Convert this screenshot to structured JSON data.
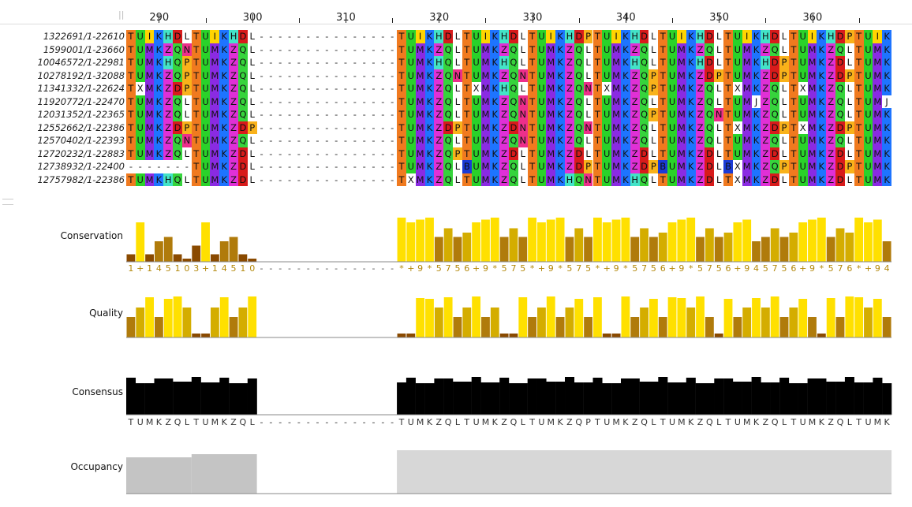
{
  "ruler": {
    "start": 287,
    "labels": [
      "290",
      "300",
      "310",
      "320",
      "330",
      "340",
      "350",
      "360"
    ]
  },
  "sequences": [
    {
      "name": "1322691/1-22610",
      "seq": "TUIKHDLTUIKHDL---------------TUIKHDLTUIKHDLTUIKHDPTUIKHDLTUIKHDLTUIKHDLTUIKHDPTUIK"
    },
    {
      "name": "1599001/1-23660",
      "seq": "TUMKZQNTUMKZQL---------------TUMKZQLTUMKZQLTUMKZQLTUMKZQLTUMKZQLTUMKZQLTUMKZQLTUMK"
    },
    {
      "name": "10046572/1-22981",
      "seq": "TUMKHQPTUMKZQL---------------TUMKHQLTUMKHQLTUMKZQLTUMKHQLTUMKHDLTUMKHDPTUMKZDLTUMK"
    },
    {
      "name": "10278192/1-32088",
      "seq": "TUMKZQPTUMKZQL---------------TUMKZQNTUMKZQNTUMKZQLTUMKZQPTUMKZDPTUMKZDPTUMKZDPTUMK"
    },
    {
      "name": "11341332/1-22624",
      "seq": "TXMKZDPTUMKZQL---------------TUMKZQLTXMKHQLTUMKZQNTXMKZQPTUMKZQLTXMKZQLTXMKZQLTUMK"
    },
    {
      "name": "11920772/1-22470",
      "seq": "TUMKZQLTUMKZQL---------------TUMKZQLTUMKZQNTUMKZQLTUMKZQLTUMKZQLTUMJZQLTUMKZQLTUMJ"
    },
    {
      "name": "12031352/1-22365",
      "seq": "TUMKZQLTUMKZQL---------------TUMKZQLTUMKZQNTUMKZQLTUMKZQPTUMKZQNTUMKZQLTUMKZQLTUMK"
    },
    {
      "name": "12552662/1-22386",
      "seq": "TUMKZDPTUMKZDP---------------TUMKZDPTUMKZDNTUMKZQNTUMKZQLTUMKZQLTXMKZDPTXMKZDPTUMK"
    },
    {
      "name": "12570402/1-22393",
      "seq": "TUMKZQNTUMKZQL---------------TUMKZQLTUMKZQNTUMKZQLTUMKZQLTUMKZQLTUMKZQLTUMKZQLTUMK"
    },
    {
      "name": "12720232/1-22883",
      "seq": "TUMKZQLTUMKZDL---------------TUMKZQPTUMKZDLTUMKZDLTUMKZDLTUMKZDLTUMKZDLTUMKZDLTUMK"
    },
    {
      "name": "12738932/1-22400",
      "seq": "-------TUMKZDL---------------TUMKZQLBUMKZQLTUMKZDPTUMKZDPBUMKZDLBXMKZQPTUMKZDPTUMK"
    },
    {
      "name": "12757982/1-22386",
      "seq": "TUMKHQLTUMKZDL---------------TXMKZQLTUMKZQLTUMKHQNTUMKHQLTUMKZDLTXMKZDLTUMKZDLTUMK"
    }
  ],
  "residue_colors": {
    "T": "#f07a1f",
    "U": "#2ad22a",
    "I": "#ffd400",
    "M": "#8a2be2",
    "K": "#1e74ff",
    "H": "#43e3c7",
    "D": "#d81b1b",
    "Q": "#36d43c",
    "Z": "#e030d6",
    "L": "#ffffff",
    "P": "#f9b21a",
    "N": "#ed2f8b",
    "X": "#ffffff",
    "J": "#ffffff",
    "B": "#1b3bd6",
    "-": "#ffffff"
  },
  "tracks": {
    "conservation": {
      "label": "Conservation",
      "values": [
        "1",
        "+",
        "1",
        "4",
        "5",
        "1",
        "0",
        "3",
        "+",
        "1",
        "4",
        "5",
        "1",
        "0",
        "-",
        "-",
        "-",
        "-",
        "-",
        "-",
        "-",
        "-",
        "-",
        "-",
        "-",
        "-",
        "-",
        "-",
        "-",
        "*",
        "+",
        "9",
        "*",
        "5",
        "7",
        "5",
        "6",
        "+",
        "9",
        "*",
        "5",
        "7",
        "5",
        "*",
        "+",
        "9",
        "*",
        "5",
        "7",
        "5",
        "*",
        "+",
        "9",
        "*",
        "5",
        "7",
        "5",
        "6",
        "+",
        "9",
        "*",
        "5",
        "7",
        "5",
        "6",
        "+",
        "9",
        "4",
        "5",
        "7",
        "5",
        "6",
        "+",
        "9",
        "*",
        "5",
        "7",
        "6",
        "*",
        "+",
        "9",
        "4"
      ]
    },
    "quality": {
      "label": "Quality"
    },
    "consensus": {
      "label": "Consensus",
      "seq": "TUMKZQLTUMKZQL---------------TUMKZQLTUMKZQLTUMKZQPTUMKZQLTUMKZQLTUMKZQLTUMKZQLTUMK"
    },
    "occupancy": {
      "label": "Occupancy"
    }
  },
  "colors": {
    "cons_high": "#ffe000",
    "cons_mid": "#d4ad00",
    "cons_low": "#b07b0b",
    "cons_vlow": "#8a4a00",
    "consensus_bar": "#000000",
    "occupancy_a": "#c4c4c4",
    "occupancy_b": "#d7d7d7"
  }
}
